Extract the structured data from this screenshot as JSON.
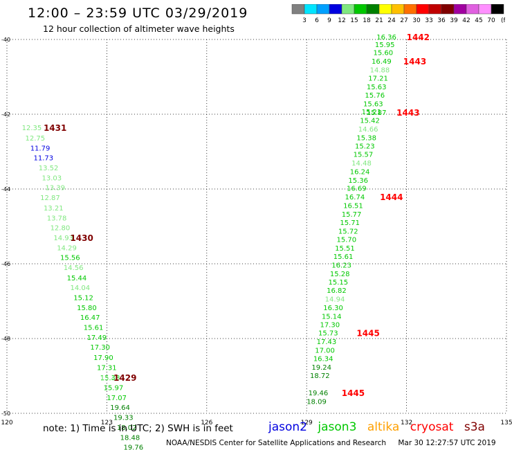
{
  "header": {
    "title": "12:00 – 23:59 UTC 03/29/2019",
    "subtitle": "12 hour collection of altimeter wave heights"
  },
  "colorscale": {
    "unit": "(ft)",
    "bins": [
      {
        "label": "3",
        "color": "#808080"
      },
      {
        "label": "6",
        "color": "#00e5ff"
      },
      {
        "label": "9",
        "color": "#00a0ff"
      },
      {
        "label": "12",
        "color": "#0000e0"
      },
      {
        "label": "15",
        "color": "#80e880"
      },
      {
        "label": "18",
        "color": "#00c800"
      },
      {
        "label": "21",
        "color": "#008000"
      },
      {
        "label": "24",
        "color": "#ffff00"
      },
      {
        "label": "27",
        "color": "#ffc000"
      },
      {
        "label": "30",
        "color": "#ff7000"
      },
      {
        "label": "33",
        "color": "#ff0000"
      },
      {
        "label": "36",
        "color": "#c00000"
      },
      {
        "label": "39",
        "color": "#800000"
      },
      {
        "label": "42",
        "color": "#a000a0"
      },
      {
        "label": "45",
        "color": "#e060e0"
      },
      {
        "label": "70",
        "color": "#ff90ff"
      },
      {
        "label": "",
        "color": "#000000"
      }
    ]
  },
  "chart_data": {
    "type": "scatter",
    "title": "12:00 – 23:59 UTC 03/29/2019",
    "subtitle": "12 hour collection of altimeter wave heights",
    "xlim": [
      120,
      135
    ],
    "ylim": [
      -50,
      -40
    ],
    "x_ticks": [
      "120",
      "123",
      "126",
      "129",
      "132",
      "135"
    ],
    "y_ticks": [
      "-40",
      "-42",
      "-44",
      "-46",
      "-48",
      "-50"
    ],
    "grid": true,
    "tracks": [
      {
        "satellite": "jason3",
        "points": [
          {
            "x": 120.45,
            "y": -42.43,
            "v": "12.35",
            "c": "#80e880"
          },
          {
            "x": 120.55,
            "y": -42.7,
            "v": "12.75",
            "c": "#80e880"
          },
          {
            "x": 120.7,
            "y": -42.97,
            "v": "11.79",
            "c": "#0000e0"
          },
          {
            "x": 120.8,
            "y": -43.23,
            "v": "11.73",
            "c": "#0000e0"
          },
          {
            "x": 120.95,
            "y": -43.5,
            "v": "13.52",
            "c": "#80e880"
          },
          {
            "x": 121.05,
            "y": -43.77,
            "v": "13.03",
            "c": "#80e880"
          },
          {
            "x": 121.15,
            "y": -44.03,
            "v": "13.39",
            "c": "#80e880"
          },
          {
            "x": 121.0,
            "y": -44.3,
            "v": "12.87",
            "c": "#80e880"
          },
          {
            "x": 121.1,
            "y": -44.57,
            "v": "13.21",
            "c": "#80e880"
          },
          {
            "x": 121.2,
            "y": -44.84,
            "v": "13.78",
            "c": "#80e880"
          },
          {
            "x": 121.3,
            "y": -45.1,
            "v": "12.80",
            "c": "#80e880"
          },
          {
            "x": 121.4,
            "y": -45.37,
            "v": "14.93",
            "c": "#80e880"
          },
          {
            "x": 121.5,
            "y": -45.64,
            "v": "14.29",
            "c": "#80e880"
          },
          {
            "x": 121.6,
            "y": -45.9,
            "v": "15.56",
            "c": "#00c800"
          },
          {
            "x": 121.7,
            "y": -46.17,
            "v": "14.56",
            "c": "#80e880"
          },
          {
            "x": 121.8,
            "y": -46.44,
            "v": "15.44",
            "c": "#00c800"
          },
          {
            "x": 121.9,
            "y": -46.7,
            "v": "14.04",
            "c": "#80e880"
          },
          {
            "x": 122.0,
            "y": -46.97,
            "v": "15.12",
            "c": "#00c800"
          },
          {
            "x": 122.1,
            "y": -47.24,
            "v": "15.80",
            "c": "#00c800"
          },
          {
            "x": 122.2,
            "y": -47.5,
            "v": "16.47",
            "c": "#00c800"
          },
          {
            "x": 122.3,
            "y": -47.77,
            "v": "15.61",
            "c": "#00c800"
          },
          {
            "x": 122.4,
            "y": -48.04,
            "v": "17.49",
            "c": "#00c800"
          },
          {
            "x": 122.5,
            "y": -48.3,
            "v": "17.30",
            "c": "#00c800"
          },
          {
            "x": 122.6,
            "y": -48.57,
            "v": "17.90",
            "c": "#00c800"
          },
          {
            "x": 122.7,
            "y": -48.84,
            "v": "17.31",
            "c": "#00c800"
          },
          {
            "x": 122.8,
            "y": -49.11,
            "v": "15.38",
            "c": "#00c800"
          },
          {
            "x": 122.8,
            "y": -49.12,
            "v": "15.43",
            "c": "#80e880"
          },
          {
            "x": 122.9,
            "y": -49.38,
            "v": "15.97",
            "c": "#00c800"
          },
          {
            "x": 123.0,
            "y": -49.65,
            "v": "17.07",
            "c": "#00c800"
          },
          {
            "x": 123.1,
            "y": -49.91,
            "v": "19.64",
            "c": "#008000"
          },
          {
            "x": 123.2,
            "y": -50.18,
            "v": "19.33",
            "c": "#008000"
          },
          {
            "x": 123.3,
            "y": -50.44,
            "v": "18.02",
            "c": "#008000"
          },
          {
            "x": 123.4,
            "y": -50.71,
            "v": "18.48",
            "c": "#008000"
          },
          {
            "x": 123.5,
            "y": -50.97,
            "v": "19.76",
            "c": "#008000"
          }
        ],
        "time_labels": [
          {
            "x": 121.1,
            "y": -42.43,
            "t": "1431",
            "c": "#800000"
          },
          {
            "x": 121.9,
            "y": -45.37,
            "t": "1430",
            "c": "#800000"
          },
          {
            "x": 123.2,
            "y": -49.11,
            "t": "1429",
            "c": "#800000"
          }
        ]
      },
      {
        "satellite": "s3a",
        "points": [
          {
            "x": 131.1,
            "y": -40.0,
            "v": "16.36",
            "c": "#00c800"
          },
          {
            "x": 131.05,
            "y": -40.2,
            "v": "15.95",
            "c": "#00c800"
          },
          {
            "x": 131.0,
            "y": -40.42,
            "v": "15.60",
            "c": "#00c800"
          },
          {
            "x": 130.95,
            "y": -40.65,
            "v": "16.49",
            "c": "#00c800"
          },
          {
            "x": 130.9,
            "y": -40.88,
            "v": "14.88",
            "c": "#80e880"
          },
          {
            "x": 130.85,
            "y": -41.1,
            "v": "17.21",
            "c": "#00c800"
          },
          {
            "x": 130.8,
            "y": -41.33,
            "v": "15.63",
            "c": "#00c800"
          },
          {
            "x": 130.75,
            "y": -41.56,
            "v": "15.76",
            "c": "#00c800"
          },
          {
            "x": 130.7,
            "y": -41.79,
            "v": "15.63",
            "c": "#00c800"
          },
          {
            "x": 130.65,
            "y": -42.0,
            "v": "15.21",
            "c": "#00c800"
          },
          {
            "x": 130.8,
            "y": -42.02,
            "v": "15.87",
            "c": "#00c800"
          },
          {
            "x": 130.6,
            "y": -42.23,
            "v": "15.42",
            "c": "#00c800"
          },
          {
            "x": 130.55,
            "y": -42.46,
            "v": "14.66",
            "c": "#80e880"
          },
          {
            "x": 130.5,
            "y": -42.69,
            "v": "15.38",
            "c": "#00c800"
          },
          {
            "x": 130.45,
            "y": -42.92,
            "v": "15.23",
            "c": "#00c800"
          },
          {
            "x": 130.4,
            "y": -43.14,
            "v": "15.57",
            "c": "#00c800"
          },
          {
            "x": 130.35,
            "y": -43.37,
            "v": "14.48",
            "c": "#80e880"
          },
          {
            "x": 130.3,
            "y": -43.6,
            "v": "16.24",
            "c": "#00c800"
          },
          {
            "x": 130.25,
            "y": -43.83,
            "v": "15.36",
            "c": "#00c800"
          },
          {
            "x": 130.2,
            "y": -44.05,
            "v": "16.69",
            "c": "#00c800"
          },
          {
            "x": 130.15,
            "y": -44.28,
            "v": "16.74",
            "c": "#00c800"
          },
          {
            "x": 130.1,
            "y": -44.51,
            "v": "16.51",
            "c": "#00c800"
          },
          {
            "x": 130.05,
            "y": -44.74,
            "v": "15.77",
            "c": "#00c800"
          },
          {
            "x": 130.0,
            "y": -44.96,
            "v": "15.71",
            "c": "#00c800"
          },
          {
            "x": 129.95,
            "y": -45.19,
            "v": "15.72",
            "c": "#00c800"
          },
          {
            "x": 129.9,
            "y": -45.42,
            "v": "15.70",
            "c": "#00c800"
          },
          {
            "x": 129.85,
            "y": -45.65,
            "v": "15.51",
            "c": "#00c800"
          },
          {
            "x": 129.8,
            "y": -45.87,
            "v": "15.61",
            "c": "#00c800"
          },
          {
            "x": 129.75,
            "y": -46.1,
            "v": "16.23",
            "c": "#00c800"
          },
          {
            "x": 129.7,
            "y": -46.33,
            "v": "15.28",
            "c": "#00c800"
          },
          {
            "x": 129.65,
            "y": -46.56,
            "v": "15.15",
            "c": "#00c800"
          },
          {
            "x": 129.6,
            "y": -46.78,
            "v": "16.82",
            "c": "#00c800"
          },
          {
            "x": 129.55,
            "y": -47.01,
            "v": "14.94",
            "c": "#80e880"
          },
          {
            "x": 129.5,
            "y": -47.24,
            "v": "16.30",
            "c": "#00c800"
          },
          {
            "x": 129.45,
            "y": -47.47,
            "v": "15.14",
            "c": "#00c800"
          },
          {
            "x": 129.4,
            "y": -47.69,
            "v": "17.30",
            "c": "#00c800"
          },
          {
            "x": 129.35,
            "y": -47.92,
            "v": "15.73",
            "c": "#00c800"
          },
          {
            "x": 129.3,
            "y": -48.15,
            "v": "17.43",
            "c": "#00c800"
          },
          {
            "x": 129.25,
            "y": -48.38,
            "v": "17.00",
            "c": "#00c800"
          },
          {
            "x": 129.2,
            "y": -48.6,
            "v": "16.34",
            "c": "#00c800"
          },
          {
            "x": 129.15,
            "y": -48.83,
            "v": "19.24",
            "c": "#008000"
          },
          {
            "x": 129.1,
            "y": -49.06,
            "v": "18.72",
            "c": "#008000"
          },
          {
            "x": 129.05,
            "y": -49.52,
            "v": "19.46",
            "c": "#008000"
          },
          {
            "x": 129.0,
            "y": -49.75,
            "v": "18.09",
            "c": "#008000"
          }
        ],
        "time_labels": [
          {
            "x": 132.0,
            "y": -40.0,
            "t": "1442",
            "c": "#ff0000"
          },
          {
            "x": 131.9,
            "y": -40.65,
            "v2": "",
            "t": "1443",
            "c": "#ff0000"
          },
          {
            "x": 131.7,
            "y": -42.02,
            "t": "1443",
            "c": "#ff0000"
          },
          {
            "x": 131.2,
            "y": -44.28,
            "t": "1444",
            "c": "#ff0000"
          },
          {
            "x": 130.5,
            "y": -47.92,
            "t": "1445",
            "c": "#ff0000"
          },
          {
            "x": 130.05,
            "y": -49.52,
            "t": "1445",
            "c": "#ff0000"
          }
        ]
      }
    ]
  },
  "note": "note: 1) Time is in UTC; 2) SWH is in feet",
  "satellites": [
    {
      "name": "jason2",
      "color": "#0000e0"
    },
    {
      "name": "jason3",
      "color": "#00c800"
    },
    {
      "name": "altika",
      "color": "#ffa000"
    },
    {
      "name": "cryosat",
      "color": "#ff0000"
    },
    {
      "name": "s3a",
      "color": "#800000"
    }
  ],
  "footer": {
    "credit": "NOAA/NESDIS Center for Satellite Applications and Research",
    "timestamp": "Mar 30 12:27:57 UTC 2019"
  }
}
